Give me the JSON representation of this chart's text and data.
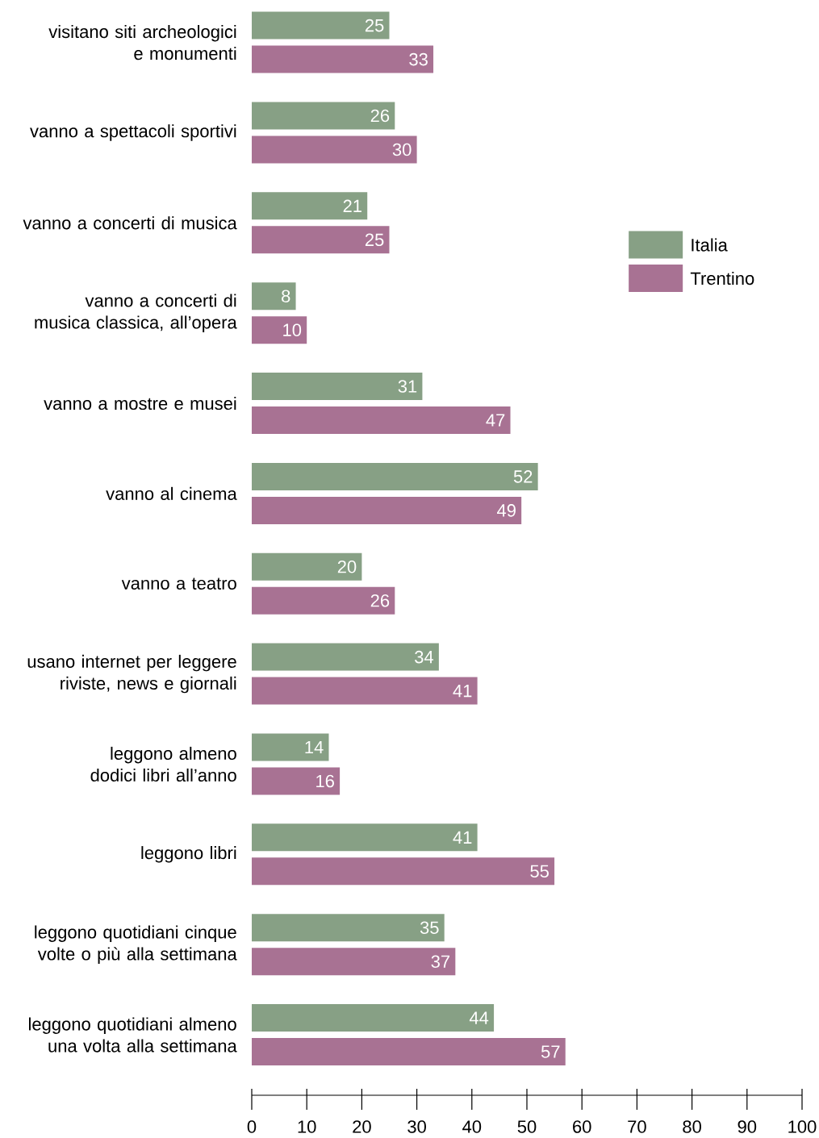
{
  "chart_data": {
    "type": "bar",
    "orientation": "horizontal",
    "categories": [
      "visitano siti archeologici e monumenti",
      "vanno a spettacoli sportivi",
      "vanno a concerti di musica",
      "vanno a concerti di musica classica, all’opera",
      "vanno a mostre e musei",
      "vanno al cinema",
      "vanno a teatro",
      "usano internet per leggere riviste, news e giornali",
      "leggono almeno dodici libri all’anno",
      "leggono libri",
      "leggono quotidiani cinque volte o più alla settimana",
      "leggono quotidiani almeno una volta alla settimana"
    ],
    "series": [
      {
        "name": "Italia",
        "color": "#87a085",
        "values": [
          25,
          26,
          21,
          8,
          31,
          52,
          20,
          34,
          14,
          41,
          35,
          44
        ]
      },
      {
        "name": "Trentino",
        "color": "#a87293",
        "values": [
          33,
          30,
          25,
          10,
          47,
          49,
          26,
          41,
          16,
          55,
          37,
          57
        ]
      }
    ],
    "xlim": [
      0,
      100
    ],
    "xticks": [
      0,
      10,
      20,
      30,
      40,
      50,
      60,
      70,
      80,
      90,
      100
    ],
    "data_labels": true,
    "legend": "top right"
  }
}
